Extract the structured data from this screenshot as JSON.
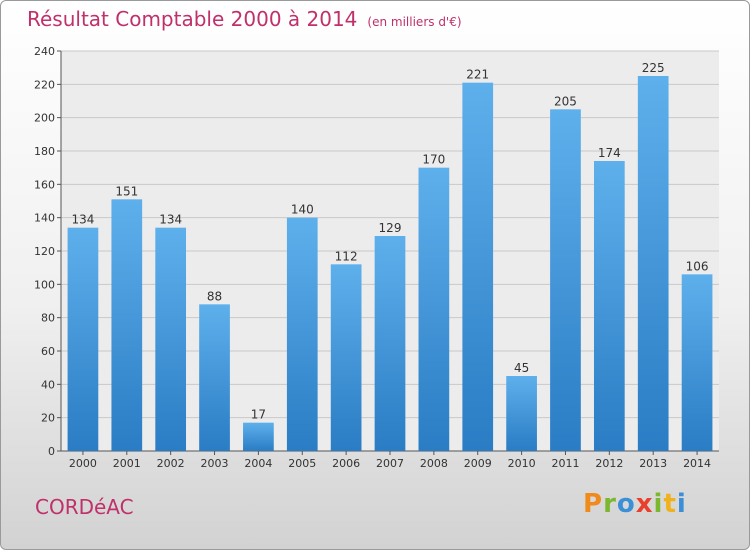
{
  "chart_data": {
    "type": "bar",
    "title": "Résultat Comptable 2000 à 2014",
    "subtitle": "(en milliers d'€)",
    "categories": [
      "2000",
      "2001",
      "2002",
      "2003",
      "2004",
      "2005",
      "2006",
      "2007",
      "2008",
      "2009",
      "2010",
      "2011",
      "2012",
      "2013",
      "2014"
    ],
    "values": [
      134,
      151,
      134,
      88,
      17,
      140,
      112,
      129,
      170,
      221,
      45,
      205,
      174,
      225,
      106
    ],
    "ylim": [
      0,
      240
    ],
    "yticks": [
      0,
      20,
      40,
      60,
      80,
      100,
      120,
      140,
      160,
      180,
      200,
      220,
      240
    ],
    "grid": true,
    "bar_color": "#3d93d8"
  },
  "location": "CORDéAC",
  "logo": {
    "text": "Proxiti",
    "colors": [
      "#f08a1a",
      "#7cb82f",
      "#3a8fd6",
      "#e8402a",
      "#7cb82f",
      "#f0b21a",
      "#3a8fd6"
    ]
  }
}
